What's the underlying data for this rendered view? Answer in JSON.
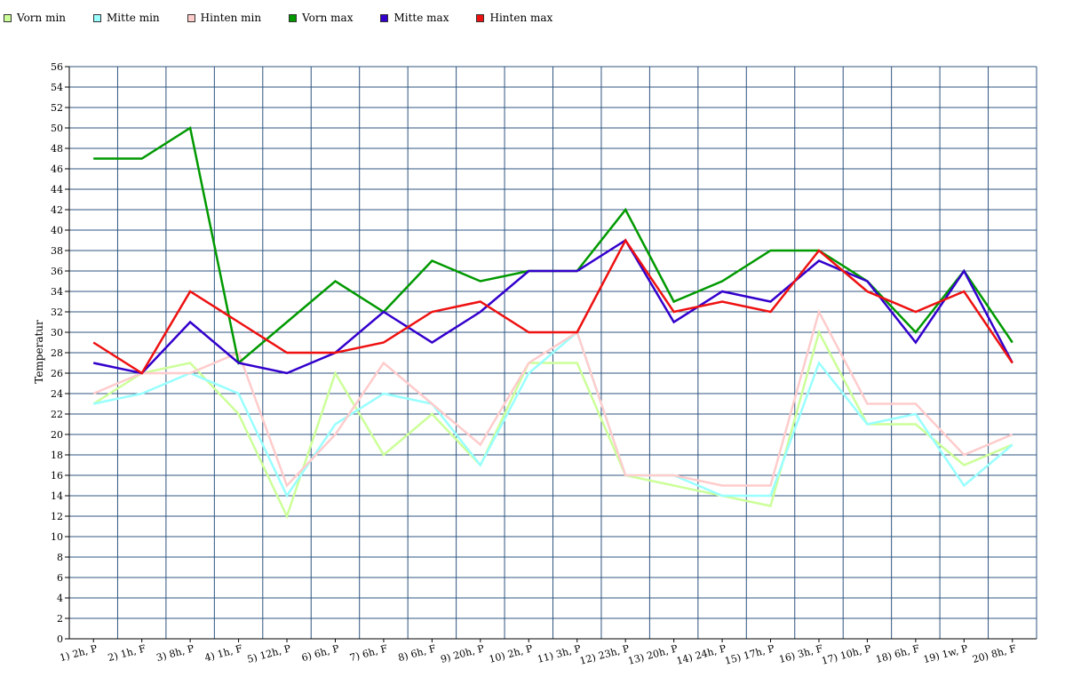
{
  "chart_data": {
    "type": "line",
    "title": "",
    "xlabel": "",
    "ylabel": "Temperatur",
    "ylim": [
      0,
      56
    ],
    "ytick_step": 2,
    "grid": true,
    "legend_position": "top-left",
    "categories": [
      "1) 2h, P",
      "2) 1h, F",
      "3) 8h, P",
      "4) 1h, F",
      "5) 12h, P",
      "6) 6h, P",
      "7) 6h, F",
      "8) 6h, F",
      "9) 20h, P",
      "10) 2h, P",
      "11) 3h, P",
      "12) 23h, P",
      "13) 20h, P",
      "14) 24h, P",
      "15) 17h, P",
      "16) 3h, F",
      "17) 10h, P",
      "18) 6h, F",
      "19) 1w, P",
      "20) 8h, F"
    ],
    "series": [
      {
        "name": "Vorn min",
        "color": "#ccff99",
        "values": [
          23,
          26,
          27,
          22,
          12,
          26,
          18,
          22,
          17,
          27,
          27,
          16,
          15,
          14,
          13,
          30,
          21,
          21,
          17,
          19
        ]
      },
      {
        "name": "Mitte min",
        "color": "#99ffff",
        "values": [
          23,
          24,
          26,
          24,
          14,
          21,
          24,
          23,
          17,
          26,
          30,
          16,
          16,
          14,
          14,
          27,
          21,
          22,
          15,
          19
        ]
      },
      {
        "name": "Hinten min",
        "color": "#ffcccc",
        "values": [
          24,
          26,
          26,
          28,
          15,
          20,
          27,
          23,
          19,
          27,
          30,
          16,
          16,
          15,
          15,
          32,
          23,
          23,
          18,
          20
        ]
      },
      {
        "name": "Vorn max",
        "color": "#009900",
        "values": [
          47,
          47,
          50,
          27,
          31,
          35,
          32,
          37,
          35,
          36,
          36,
          42,
          33,
          35,
          38,
          38,
          35,
          30,
          36,
          29
        ]
      },
      {
        "name": "Mitte max",
        "color": "#3300cc",
        "values": [
          27,
          26,
          31,
          27,
          26,
          28,
          32,
          29,
          32,
          36,
          36,
          39,
          31,
          34,
          33,
          37,
          35,
          29,
          36,
          27
        ]
      },
      {
        "name": "Hinten max",
        "color": "#ee1111",
        "values": [
          29,
          26,
          34,
          31,
          28,
          28,
          29,
          32,
          33,
          30,
          30,
          39,
          32,
          33,
          32,
          38,
          34,
          32,
          34,
          27
        ]
      }
    ]
  }
}
